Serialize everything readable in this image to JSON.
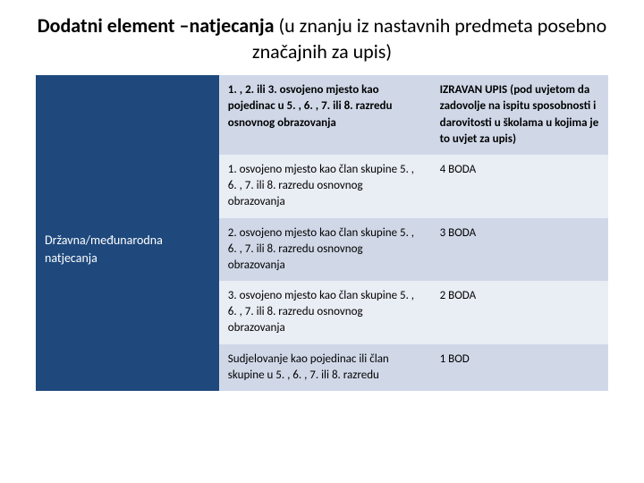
{
  "title": {
    "prefix_bold": "Dodatni element –natjecanja",
    "prefix_light": "(u ",
    "main": "znanju iz nastavnih predmeta posebno značajnih za upis)"
  },
  "table": {
    "left_label": "Državna/međunarodna natjecanja",
    "header": {
      "criterion": "1. , 2. ili 3. osvojeno mjesto kao pojedinac u 5. , 6. , 7. ili 8. razredu osnovnog obrazovanja",
      "result_bold": "IZRAVAN UPIS",
      "result_rest": " (pod uvjetom da zadovolje na ispitu sposobnosti i darovitosti u školama u kojima je to uvjet za upis)"
    },
    "rows": [
      {
        "criterion": "1. osvojeno mjesto kao član skupine 5. , 6. , 7. ili 8. razredu osnovnog obrazovanja",
        "points": "4 BODA"
      },
      {
        "criterion": "2. osvojeno mjesto kao član skupine 5. , 6. , 7. ili 8. razredu osnovnog obrazovanja",
        "points": "3 BODA"
      },
      {
        "criterion": "3. osvojeno mjesto kao član skupine 5. , 6. , 7. ili 8. razredu osnovnog obrazovanja",
        "points": "2 BODA"
      },
      {
        "criterion": "Sudjelovanje kao pojedinac ili član skupine u 5. , 6. , 7. ili 8. razredu",
        "points": "1 BOD"
      }
    ],
    "colors": {
      "left_bg": "#1f497d",
      "header_bg": "#d0d8e8",
      "row_even_bg": "#e9edf4",
      "row_odd_bg": "#d0d8e8",
      "text_dark": "#000000",
      "text_light": "#ffffff"
    }
  }
}
